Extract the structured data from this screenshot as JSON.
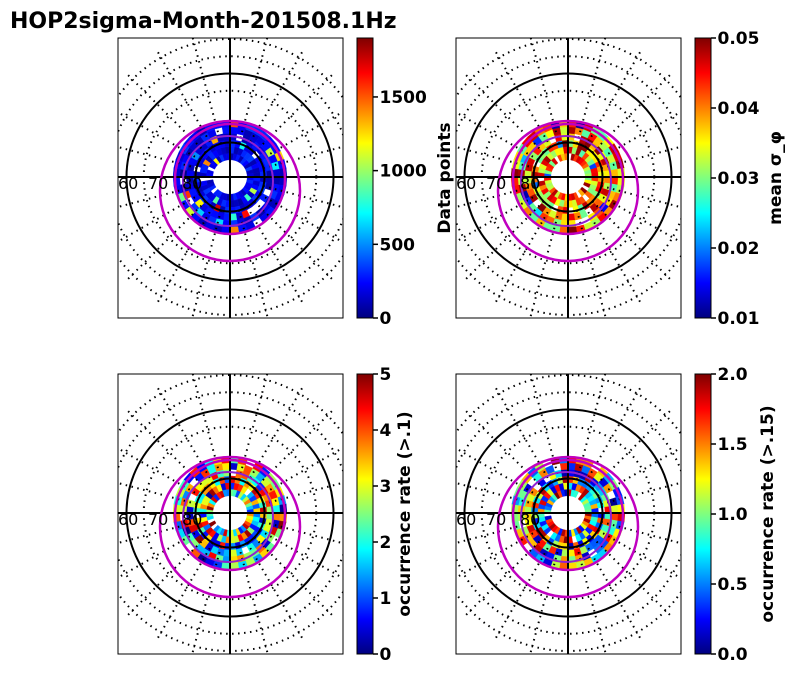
{
  "figure_title": "HOP2sigma-Month-201508.1Hz",
  "latitude_labels": [
    "60",
    "70",
    "80"
  ],
  "colormap_stops": [
    "#00007f",
    "#0000ff",
    "#007fff",
    "#00ffff",
    "#7fff7f",
    "#ffff00",
    "#ff7f00",
    "#ff0000",
    "#7f0000"
  ],
  "colors": {
    "magenta": "#c000c0",
    "purple": "#9020d0",
    "grid": "#000000"
  },
  "chart_data": [
    {
      "type": "heatmap",
      "projection": "polar",
      "panel": "top-left",
      "title": "",
      "colorbar_label": "Data points",
      "colorbar_range": [
        0,
        1900
      ],
      "colorbar_ticks": [
        "0",
        "500",
        "1000",
        "1500"
      ],
      "lat_range": [
        60,
        90
      ],
      "data_ring_lat": [
        75,
        85
      ],
      "bias": [
        0.04,
        0.18
      ],
      "seed": 11
    },
    {
      "type": "heatmap",
      "projection": "polar",
      "panel": "top-right",
      "title": "",
      "colorbar_label": "mean σ_φ",
      "colorbar_range": [
        0.01,
        0.05
      ],
      "colorbar_ticks": [
        "0.01",
        "0.02",
        "0.03",
        "0.04",
        "0.05"
      ],
      "lat_range": [
        60,
        90
      ],
      "data_ring_lat": [
        75,
        85
      ],
      "bias": [
        0.45,
        1.0
      ],
      "seed": 23
    },
    {
      "type": "heatmap",
      "projection": "polar",
      "panel": "bottom-left",
      "title": "",
      "colorbar_label": "occurrence rate (>.1)",
      "colorbar_range": [
        0,
        5
      ],
      "colorbar_ticks": [
        "0",
        "1",
        "2",
        "3",
        "4",
        "5"
      ],
      "lat_range": [
        60,
        90
      ],
      "data_ring_lat": [
        75,
        85
      ],
      "bias": [
        0.05,
        1.0
      ],
      "seed": 37
    },
    {
      "type": "heatmap",
      "projection": "polar",
      "panel": "bottom-right",
      "title": "",
      "colorbar_label": "occurrence rate (>.15)",
      "colorbar_range": [
        0.0,
        2.0
      ],
      "colorbar_ticks": [
        "0.0",
        "0.5",
        "1.0",
        "1.5",
        "2.0"
      ],
      "lat_range": [
        60,
        90
      ],
      "data_ring_lat": [
        75,
        85
      ],
      "bias": [
        0.05,
        1.0
      ],
      "seed": 53
    }
  ]
}
